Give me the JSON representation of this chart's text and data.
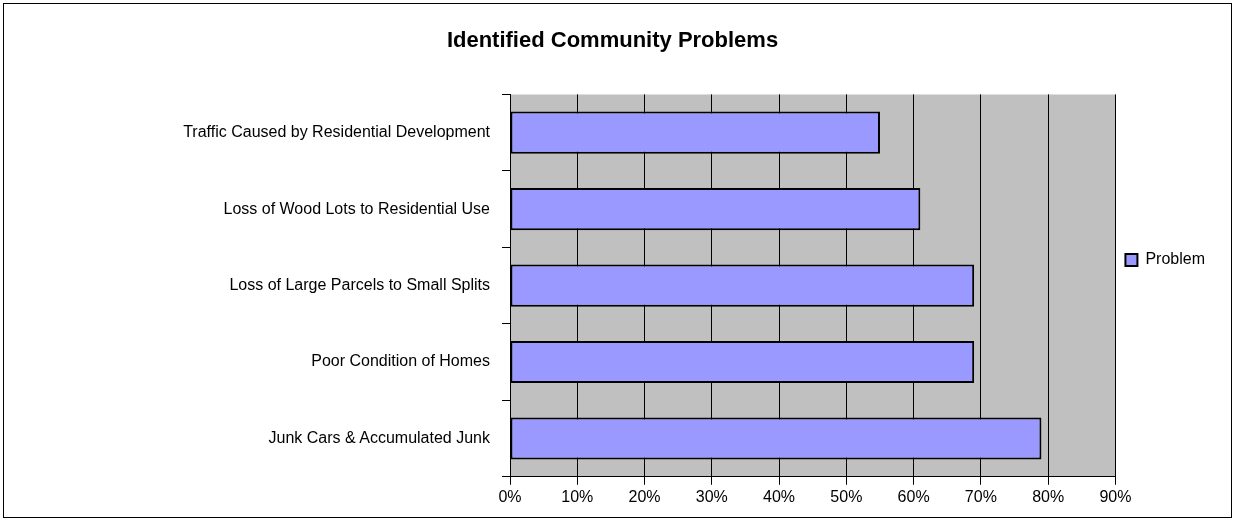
{
  "chart_data": {
    "type": "bar",
    "orientation": "horizontal",
    "title": "Identified Community Problems",
    "categories": [
      "Traffic Caused by Residential Development",
      "Loss of Wood Lots to Residential Use",
      "Loss of Large Parcels to Small Splits",
      "Poor Condition of Homes",
      "Junk Cars & Accumulated Junk"
    ],
    "series": [
      {
        "name": "Problem",
        "color": "#9999ff",
        "values": [
          55,
          61,
          69,
          69,
          79
        ]
      }
    ],
    "xlim": [
      0,
      90
    ],
    "xticks": [
      {
        "value": 0,
        "label": "0%"
      },
      {
        "value": 10,
        "label": "10%"
      },
      {
        "value": 20,
        "label": "20%"
      },
      {
        "value": 30,
        "label": "30%"
      },
      {
        "value": 40,
        "label": "40%"
      },
      {
        "value": 50,
        "label": "50%"
      },
      {
        "value": 60,
        "label": "60%"
      },
      {
        "value": 70,
        "label": "70%"
      },
      {
        "value": 80,
        "label": "80%"
      },
      {
        "value": 90,
        "label": "90%"
      }
    ],
    "grid": "x",
    "legend": "right"
  }
}
